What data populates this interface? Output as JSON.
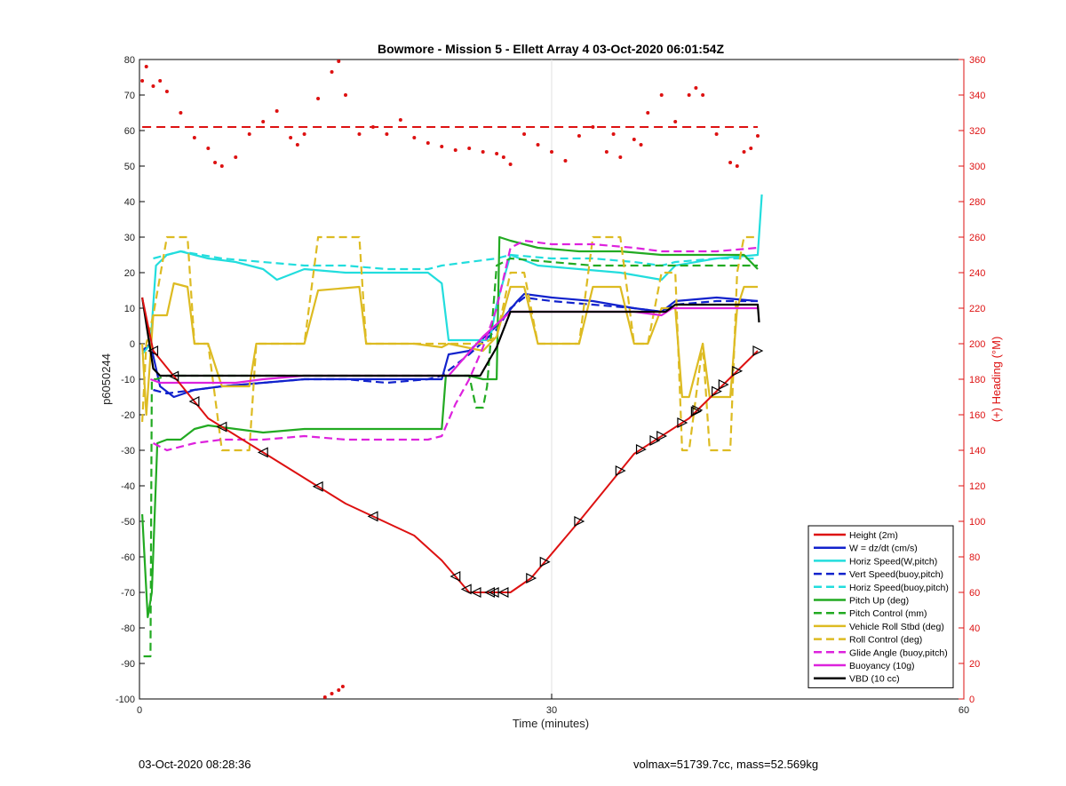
{
  "chart_data": {
    "type": "line",
    "title": "Bowmore - Mission 5 - Ellett Array 4 03-Oct-2020 06:01:54Z",
    "xlabel": "Time (minutes)",
    "ylabel": "p6050244",
    "ylabel_right": "(+) Heading (°M)",
    "xlim": [
      0,
      60
    ],
    "ylim": [
      -100,
      80
    ],
    "ylim_right": [
      0,
      360
    ],
    "xticks": [
      0,
      30,
      60
    ],
    "yticks": [
      -100,
      -90,
      -80,
      -70,
      -60,
      -50,
      -40,
      -30,
      -20,
      -10,
      0,
      10,
      20,
      30,
      40,
      50,
      60,
      70,
      80
    ],
    "yticks_right": [
      0,
      20,
      40,
      60,
      80,
      100,
      120,
      140,
      160,
      180,
      200,
      220,
      240,
      260,
      280,
      300,
      320,
      340,
      360
    ],
    "grid": "x-only",
    "legend_position": "bottom-right",
    "series": [
      {
        "name": "Height (2m)",
        "color": "#dd1111",
        "style": "solid",
        "x": [
          0.2,
          1.0,
          5.0,
          10.0,
          15.0,
          20.0,
          22.0,
          24.0,
          25.5,
          27.0,
          28.5,
          32.0,
          36.0,
          40.0,
          45.0
        ],
        "y": [
          13,
          -2,
          -21,
          -33,
          -45,
          -54,
          -61,
          -70,
          -70,
          -70,
          -66,
          -50,
          -31,
          -21,
          -2
        ]
      },
      {
        "name": "W = dz/dt (cm/s)",
        "color": "#1122cc",
        "style": "solid",
        "x": [
          0.2,
          0.8,
          1.5,
          2.5,
          4.0,
          6.0,
          9.0,
          12.0,
          15.0,
          18.0,
          21.0,
          22.0,
          22.5,
          24.0,
          26.0,
          27.5,
          28.0,
          30.0,
          33.0,
          36.0,
          38.0,
          39.0,
          42.0,
          45.0
        ],
        "y": [
          -2,
          0,
          -12,
          -15,
          -13,
          -12,
          -11,
          -10,
          -10,
          -10,
          -10,
          -10,
          -3,
          -2,
          5,
          12,
          14,
          13,
          12,
          10,
          9,
          12,
          13,
          12
        ]
      },
      {
        "name": "Horiz Speed(W,pitch)",
        "color": "#22dddd",
        "style": "solid",
        "x": [
          0.2,
          0.8,
          1.2,
          2.0,
          3.0,
          5.0,
          7.0,
          9.0,
          10.0,
          12.0,
          15.0,
          18.0,
          21.0,
          22.0,
          22.5,
          24.0,
          25.5,
          26.0,
          27.0,
          29.0,
          32.0,
          35.0,
          38.0,
          39.0,
          42.0,
          45.0,
          45.3
        ],
        "y": [
          -3,
          0,
          22,
          25,
          26,
          24,
          23,
          21,
          18,
          21,
          20,
          20,
          20,
          17,
          1,
          1,
          1,
          11,
          25,
          22,
          21,
          20,
          18,
          22,
          24,
          25,
          42
        ]
      },
      {
        "name": "Vert Speed(buoy,pitch)",
        "color": "#1122cc",
        "style": "dashed",
        "x": [
          1.0,
          2.0,
          4.0,
          6.0,
          9.0,
          12.0,
          15.0,
          18.0,
          21.0,
          22.0,
          24.0,
          26.0,
          27.0,
          28.0,
          30.0,
          33.0,
          36.0,
          38.0,
          39.0,
          42.0,
          45.0
        ],
        "y": [
          -13,
          -14,
          -13,
          -12,
          -11,
          -10,
          -10,
          -11,
          -10,
          -9,
          -3,
          4,
          10,
          13,
          12,
          11,
          10,
          9,
          11,
          12,
          12
        ]
      },
      {
        "name": "Horiz Speed(buoy,pitch)",
        "color": "#22dddd",
        "style": "dashed",
        "x": [
          1.0,
          3.0,
          6.0,
          9.0,
          12.0,
          15.0,
          18.0,
          21.0,
          22.0,
          24.0,
          26.0,
          27.0,
          30.0,
          33.0,
          36.0,
          38.0,
          39.0,
          42.0,
          45.0
        ],
        "y": [
          24,
          26,
          24,
          23,
          22,
          22,
          21,
          21,
          22,
          23,
          24,
          25,
          24,
          24,
          23,
          22,
          23,
          24,
          24
        ]
      },
      {
        "name": "Pitch Up (deg)",
        "color": "#22aa22",
        "style": "solid",
        "x": [
          0.2,
          0.6,
          0.9,
          1.3,
          2.0,
          3.0,
          4.0,
          5.0,
          7.0,
          9.0,
          12.0,
          15.0,
          18.0,
          21.0,
          22.0,
          22.3,
          24.0,
          25.0,
          25.5,
          26.0,
          26.2,
          27.0,
          29.0,
          32.0,
          35.0,
          38.0,
          41.0,
          44.0,
          45.0
        ],
        "y": [
          -48,
          -77,
          -70,
          -28,
          -27,
          -27,
          -24,
          -23,
          -24,
          -25,
          -24,
          -24,
          -24,
          -24,
          -24,
          -9,
          -9,
          -10,
          -10,
          -10,
          30,
          29,
          27,
          26,
          26,
          25,
          25,
          25,
          21
        ]
      },
      {
        "name": "Pitch Control (mm)",
        "color": "#22aa22",
        "style": "dashed",
        "x": [
          0.3,
          0.8,
          0.9,
          1.2,
          2.0,
          4.0,
          8.0,
          12.0,
          16.0,
          20.0,
          22.0,
          23.0,
          24.0,
          24.5,
          25.0,
          25.3,
          26.0,
          27.0,
          30.0,
          33.0,
          36.0,
          38.0,
          42.0,
          45.0
        ],
        "y": [
          -88,
          -88,
          -10,
          -10,
          -9,
          -9,
          -9,
          -9,
          -9,
          -9,
          -9,
          -9,
          -9,
          -18,
          -18,
          -12,
          22,
          24,
          23,
          22,
          22,
          22,
          22,
          22
        ]
      },
      {
        "name": "Vehicle Roll Stbd (deg)",
        "color": "#ddbb22",
        "style": "solid",
        "x": [
          0.2,
          0.5,
          1.0,
          2.0,
          2.5,
          3.5,
          4.0,
          5.0,
          6.0,
          8.0,
          8.5,
          12.0,
          13.0,
          16.0,
          16.5,
          20.0,
          22.0,
          22.5,
          25.0,
          26.0,
          27.0,
          28.0,
          29.0,
          32.0,
          33.0,
          35.0,
          36.0,
          37.0,
          38.0,
          39.0,
          39.5,
          40.0,
          41.0,
          41.5,
          43.0,
          43.5,
          44.0,
          45.0
        ],
        "y": [
          0,
          -20,
          8,
          8,
          17,
          16,
          0,
          0,
          -12,
          -12,
          0,
          0,
          15,
          16,
          0,
          0,
          -1,
          0,
          -2,
          2,
          16,
          16,
          0,
          0,
          16,
          16,
          0,
          0,
          10,
          10,
          -15,
          -15,
          0,
          -15,
          -15,
          10,
          16,
          16
        ]
      },
      {
        "name": "Roll Control (deg)",
        "color": "#ddbb22",
        "style": "dashed",
        "x": [
          0.2,
          0.5,
          1.0,
          2.0,
          3.5,
          4.0,
          5.0,
          6.0,
          8.0,
          8.5,
          12.0,
          13.0,
          16.0,
          16.5,
          20.0,
          22.0,
          25.0,
          26.0,
          27.0,
          28.0,
          29.0,
          32.0,
          33.0,
          35.0,
          36.0,
          37.0,
          38.0,
          39.0,
          39.5,
          40.0,
          41.0,
          41.5,
          43.0,
          43.5,
          44.0,
          45.0
        ],
        "y": [
          -22,
          0,
          8,
          30,
          30,
          0,
          0,
          -30,
          -30,
          0,
          0,
          30,
          30,
          0,
          0,
          0,
          0,
          2,
          20,
          20,
          0,
          0,
          30,
          30,
          0,
          0,
          20,
          20,
          -30,
          -30,
          0,
          -30,
          -30,
          20,
          30,
          30
        ]
      },
      {
        "name": "Glide Angle (buoy,pitch)",
        "color": "#dd22dd",
        "style": "dashed",
        "x": [
          1.0,
          2.0,
          4.0,
          6.0,
          9.0,
          12.0,
          15.0,
          18.0,
          21.0,
          22.0,
          23.0,
          24.0,
          25.0,
          26.0,
          27.0,
          28.0,
          30.0,
          33.0,
          36.0,
          38.0,
          39.0,
          42.0,
          45.0
        ],
        "y": [
          -28,
          -30,
          -28,
          -27,
          -27,
          -26,
          -27,
          -27,
          -27,
          -26,
          -17,
          -10,
          -1,
          10,
          27,
          29,
          28,
          28,
          27,
          26,
          26,
          26,
          27
        ]
      },
      {
        "name": "Buoyancy (10g)",
        "color": "#dd22dd",
        "style": "solid",
        "x": [
          0.8,
          1.5,
          4.0,
          7.0,
          9.0,
          12.0,
          15.0,
          18.0,
          21.0,
          22.5,
          25.0,
          27.0,
          28.0,
          30.0,
          33.0,
          36.0,
          38.0,
          38.8,
          42.0,
          45.0
        ],
        "y": [
          -10,
          -11,
          -11,
          -11,
          -10,
          -9,
          -9,
          -9,
          -9,
          -9,
          2,
          9,
          9,
          9,
          9,
          9,
          8,
          10,
          10,
          10
        ]
      },
      {
        "name": "VBD (10 cc)",
        "color": "#000000",
        "style": "solid",
        "x": [
          0.2,
          1.0,
          1.5,
          10.0,
          22.0,
          24.8,
          26.0,
          27.0,
          30.0,
          35.0,
          38.3,
          39.0,
          45.0,
          45.1
        ],
        "y": [
          13,
          -7,
          -9,
          -9,
          -9,
          -9,
          -1,
          9,
          9,
          9,
          9,
          11,
          11,
          6
        ]
      }
    ],
    "heading_series": {
      "color": "#dd1111",
      "axis": "right",
      "style": "dotted",
      "x": [
        0.2,
        0.5,
        1.0,
        1.5,
        2.0,
        3.0,
        4.0,
        5.0,
        5.5,
        6.0,
        7.0,
        8.0,
        9.0,
        10.0,
        11.0,
        11.5,
        12.0,
        13.0,
        14.0,
        14.5,
        15.0,
        16.0,
        17.0,
        18.0,
        19.0,
        20.0,
        21.0,
        22.0,
        23.0,
        24.0,
        25.0,
        26.0,
        26.5,
        27.0,
        28.0,
        29.0,
        30.0,
        31.0,
        32.0,
        33.0,
        34.0,
        34.5,
        35.0,
        36.0,
        36.5,
        37.0,
        38.0,
        39.0,
        40.0,
        40.5,
        41.0,
        42.0,
        43.0,
        43.5,
        44.0,
        44.5,
        45.0
      ],
      "y": [
        348,
        356,
        345,
        348,
        342,
        330,
        316,
        310,
        302,
        300,
        305,
        318,
        325,
        331,
        316,
        312,
        318,
        338,
        353,
        359,
        340,
        318,
        322,
        318,
        326,
        316,
        313,
        311,
        309,
        310,
        308,
        307,
        305,
        301,
        318,
        312,
        308,
        303,
        317,
        322,
        308,
        318,
        305,
        315,
        312,
        330,
        340,
        325,
        340,
        344,
        340,
        318,
        302,
        300,
        308,
        310,
        317
      ]
    },
    "heading_mean": {
      "value": 322,
      "axis": "right",
      "style": "dashed",
      "color": "#dd1111"
    },
    "heading_outliers": {
      "x": [
        13.5,
        14.0,
        14.5,
        14.8
      ],
      "y": [
        1,
        3,
        5,
        7
      ]
    },
    "markers": {
      "shape": "triangle",
      "dive_x": [
        1.0,
        2.5,
        4.0,
        6.0,
        9.0,
        13.0,
        17.0,
        23.0,
        23.8,
        24.5,
        25.5,
        25.8,
        26.5
      ],
      "climb_x": [
        28.5,
        29.5,
        32.0,
        35.0,
        36.5,
        37.5,
        38.0,
        39.5,
        40.5,
        40.6,
        42.0,
        42.5,
        43.5,
        45.0
      ]
    },
    "annotations": {
      "date": "03-Oct-2020 08:28:36",
      "volmax_mass": "volmax=51739.7cc, mass=52.569kg"
    }
  }
}
